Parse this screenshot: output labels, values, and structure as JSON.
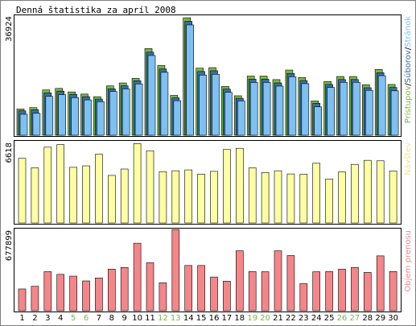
{
  "chart_data": {
    "type": "bar",
    "title": "Denná štatistika za apríl 2008",
    "categories": [
      "1",
      "2",
      "3",
      "4",
      "5",
      "6",
      "7",
      "8",
      "9",
      "10",
      "11",
      "12",
      "13",
      "14",
      "15",
      "16",
      "17",
      "18",
      "19",
      "20",
      "21",
      "22",
      "23",
      "24",
      "25",
      "26",
      "27",
      "28",
      "29",
      "30"
    ],
    "weekend_days": [
      "5",
      "6",
      "12",
      "13",
      "19",
      "20",
      "26",
      "27"
    ],
    "panels": [
      {
        "id": "hits",
        "ymax_label": "36924",
        "ymax": 36924,
        "legend": {
          "s1": "Prístupov",
          "sep1": "/",
          "s2": "Súborov",
          "sep2": "/",
          "s3": "Stránok"
        },
        "series": [
          {
            "name": "Prístupov",
            "color": "#77b744",
            "values": [
              8130,
              8550,
              14040,
              14520,
              13420,
              12760,
              11950,
              15290,
              16200,
              17630,
              26860,
              21600,
              12350,
              36400,
              20790,
              20950,
              15120,
              12230,
              18330,
              18330,
              17240,
              20200,
              17900,
              10620,
              16660,
              18210,
              18210,
              15660,
              20380,
              15740
            ]
          },
          {
            "name": "Súborov",
            "color": "#366fa6",
            "values": [
              7560,
              7900,
              13130,
              13670,
              12680,
              11950,
              11200,
              14400,
              15310,
              16890,
              25740,
              20530,
              11550,
              35300,
              19750,
              19980,
              14280,
              11440,
              17370,
              17370,
              16220,
              19150,
              16950,
              9920,
              15740,
              17260,
              17260,
              14720,
              19380,
              14800
            ]
          },
          {
            "name": "Stránok",
            "color": "#7ec0f2",
            "values": [
              6500,
              6800,
              12050,
              12580,
              11640,
              10950,
              10400,
              13560,
              14360,
              15900,
              24720,
              19500,
              10700,
              34190,
              18650,
              18890,
              13300,
              10650,
              16360,
              16360,
              15220,
              18140,
              15990,
              8800,
              14800,
              16400,
              16400,
              13920,
              18450,
              13770
            ]
          }
        ]
      },
      {
        "id": "visits",
        "ymax_label": "6618",
        "ymax": 6618,
        "legend": {
          "s1": "Návštev"
        },
        "series": [
          {
            "name": "Návštev",
            "color": "#fdfda2",
            "values": [
              5260,
              4490,
              6170,
              6380,
              4530,
              4650,
              5590,
              3870,
              4390,
              6460,
              5880,
              4180,
              4250,
              4320,
              3980,
              4200,
              5980,
              6080,
              4490,
              4110,
              4250,
              3990,
              3970,
              4860,
              3580,
              4160,
              4770,
              5100,
              5060,
              4230
            ]
          }
        ]
      },
      {
        "id": "traffic",
        "ymax_label": "677899",
        "ymax": 677899,
        "legend": {
          "s1": "Objem prenosu"
        },
        "series": [
          {
            "name": "Objem prenosu",
            "color": "#f4868a",
            "values": [
              181390,
              203780,
              325660,
              303250,
              288320,
              248250,
              272360,
              347020,
              360530,
              562690,
              399780,
              233160,
              677000,
              377130,
              377130,
              280930,
              246480,
              499780,
              326090,
              325140,
              499780,
              459950,
              225350,
              324620,
              326090,
              346540,
              361140,
              319490,
              457300,
              327090
            ]
          }
        ]
      }
    ]
  }
}
